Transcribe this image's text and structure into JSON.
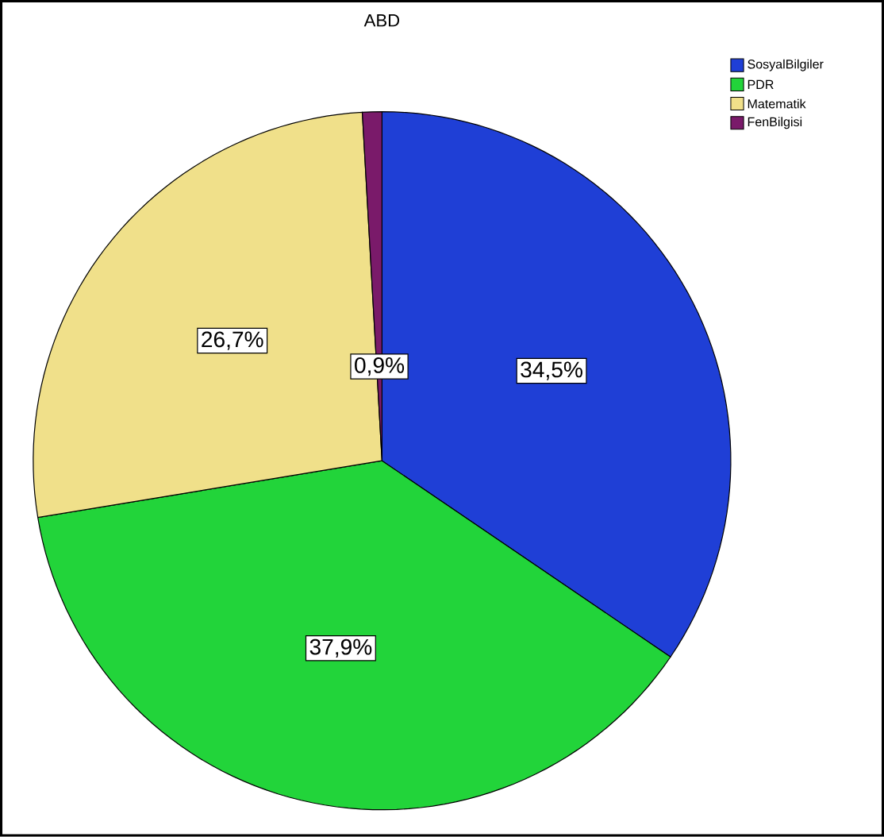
{
  "chart_data": {
    "type": "pie",
    "title": "ABD",
    "categories": [
      "SosyalBilgiler",
      "PDR",
      "Matematik",
      "FenBilgisi"
    ],
    "values": [
      34.5,
      37.9,
      26.7,
      0.9
    ],
    "value_labels": [
      "34,5%",
      "37,9%",
      "26,7%",
      "0,9%"
    ],
    "colors": [
      "#1f3fd6",
      "#22d43a",
      "#f0e08a",
      "#7a1a6a"
    ],
    "legend": "top right"
  }
}
